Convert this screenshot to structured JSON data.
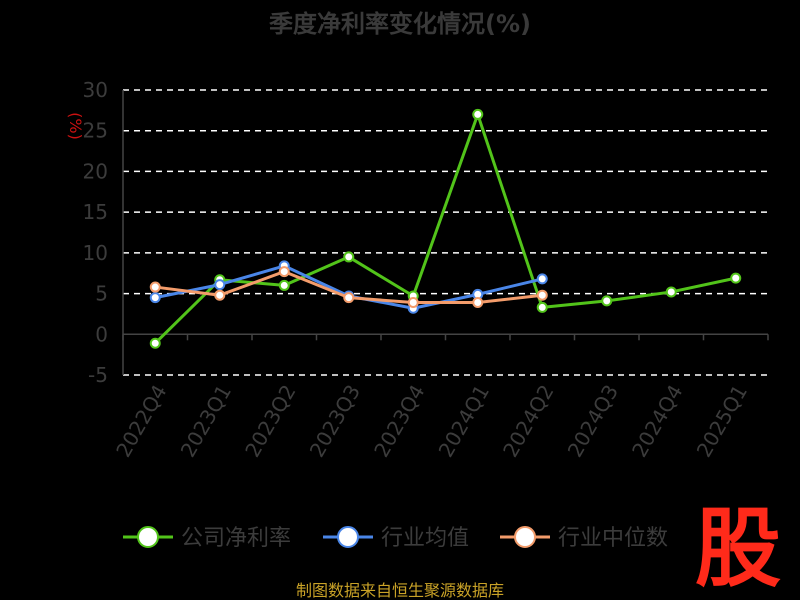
{
  "chart_data": {
    "type": "line",
    "title": "季度净利率变化情况(%)",
    "ylabel": "(%)",
    "categories": [
      "2022Q4",
      "2023Q1",
      "2023Q2",
      "2023Q3",
      "2023Q4",
      "2024Q1",
      "2024Q2",
      "2024Q3",
      "2024Q4",
      "2025Q1"
    ],
    "y_ticks": [
      "30",
      "25",
      "20",
      "15",
      "10",
      "5",
      "0",
      "-5"
    ],
    "ylim": [
      -5,
      30
    ],
    "grid": true,
    "legend_position": "bottom",
    "series": [
      {
        "name": "公司净利率",
        "color": "#52c41a",
        "values": [
          -1.1,
          6.7,
          6.0,
          9.5,
          4.7,
          27.0,
          3.3,
          4.1,
          5.2,
          6.9
        ]
      },
      {
        "name": "行业均值",
        "color": "#4a86e8",
        "values": [
          4.5,
          6.1,
          8.4,
          4.7,
          3.2,
          4.9,
          6.8,
          null,
          null,
          null
        ]
      },
      {
        "name": "行业中位数",
        "color": "#f39c6b",
        "values": [
          5.8,
          4.8,
          7.7,
          4.5,
          3.9,
          3.9,
          4.8,
          null,
          null,
          null
        ]
      }
    ]
  },
  "source_text": "制图数据来自恒生聚源数据库",
  "logo_text": "股"
}
